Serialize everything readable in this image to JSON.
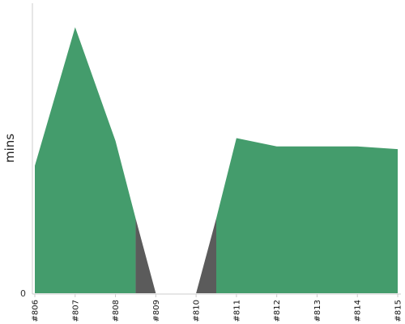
{
  "chart_data": {
    "type": "area",
    "ylabel": "mins",
    "y_tick_labels": [
      "0"
    ],
    "ylim": [
      0,
      100
    ],
    "grid": false,
    "categories": [
      "#806",
      "#807",
      "#808",
      "#809",
      "#810",
      "#811",
      "#812",
      "#813",
      "#814",
      "#815"
    ],
    "series": [
      {
        "status": "passed",
        "values": [
          46,
          96,
          55,
          null,
          null,
          56,
          53,
          53,
          53,
          52
        ]
      },
      {
        "status": "failed",
        "values": [
          null,
          null,
          null,
          null,
          null,
          null,
          null,
          null,
          null,
          null
        ]
      }
    ],
    "segments": [
      {
        "from": 0,
        "to": 2.5,
        "status": "passed",
        "start_value": 46,
        "end_value": 27,
        "points": [
          [
            0,
            46
          ],
          [
            1,
            96
          ],
          [
            2,
            55
          ]
        ]
      },
      {
        "from": 2.5,
        "to": 3,
        "status": "failed",
        "start_value": 27,
        "end_value": 0,
        "points": []
      },
      {
        "from": 4,
        "to": 4.5,
        "status": "failed",
        "start_value": 0,
        "end_value": 27,
        "points": []
      },
      {
        "from": 4.5,
        "to": 9,
        "status": "passed",
        "start_value": 27,
        "end_value": 52,
        "points": [
          [
            5,
            56
          ],
          [
            6,
            53
          ],
          [
            7,
            53
          ],
          [
            8,
            53
          ]
        ]
      }
    ],
    "colors": {
      "passed": "#449c6c",
      "failed": "#5b5b5b",
      "axis": "#cccccc"
    }
  }
}
